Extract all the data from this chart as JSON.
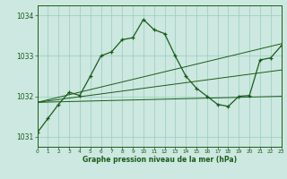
{
  "line1_x": [
    0,
    1,
    2,
    3,
    4,
    5,
    6,
    7,
    8,
    9,
    10,
    11,
    12,
    13,
    14,
    15,
    16,
    17,
    18,
    19,
    20,
    21,
    22,
    23
  ],
  "line1_y": [
    1031.1,
    1031.45,
    1031.8,
    1032.1,
    1032.02,
    1032.5,
    1033.0,
    1033.1,
    1033.4,
    1033.45,
    1033.9,
    1033.65,
    1033.55,
    1033.0,
    1032.5,
    1032.2,
    1032.0,
    1031.8,
    1031.75,
    1032.0,
    1032.02,
    1032.9,
    1032.95,
    1033.25
  ],
  "line2_x": [
    0,
    23
  ],
  "line2_y": [
    1031.85,
    1032.0
  ],
  "line3_x": [
    0,
    23
  ],
  "line3_y": [
    1031.85,
    1032.65
  ],
  "line4_x": [
    0,
    23
  ],
  "line4_y": [
    1031.85,
    1033.3
  ],
  "bg_color": "#cce8e0",
  "grid_color": "#99ccbb",
  "line_color": "#1a5c1a",
  "xlabel": "Graphe pression niveau de la mer (hPa)",
  "yticks": [
    1031,
    1032,
    1033,
    1034
  ],
  "xticks": [
    0,
    1,
    2,
    3,
    4,
    5,
    6,
    7,
    8,
    9,
    10,
    11,
    12,
    13,
    14,
    15,
    16,
    17,
    18,
    19,
    20,
    21,
    22,
    23
  ],
  "ylim": [
    1030.75,
    1034.25
  ],
  "xlim": [
    0,
    23
  ]
}
